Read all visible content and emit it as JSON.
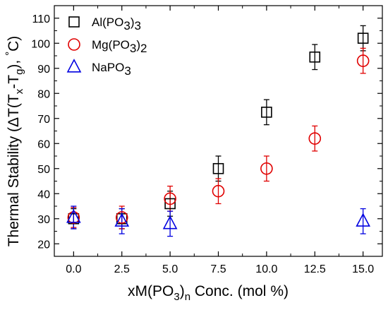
{
  "chart_data": {
    "type": "scatter",
    "title": "",
    "xlabel": "xM(PO3)n Conc. (mol %)",
    "ylabel": "Thermal Stability (ΔT(Tx-Tg), °C)",
    "xlim": [
      -1.0,
      16.0
    ],
    "ylim": [
      15,
      115
    ],
    "x_ticks": [
      0.0,
      2.5,
      5.0,
      7.5,
      10.0,
      12.5,
      15.0
    ],
    "x_tick_labels": [
      "0.0",
      "2.5",
      "5.0",
      "7.5",
      "10.0",
      "12.5",
      "15.0"
    ],
    "y_ticks": [
      20,
      30,
      40,
      50,
      60,
      70,
      80,
      90,
      100,
      110
    ],
    "y_tick_labels": [
      "20",
      "30",
      "40",
      "50",
      "60",
      "70",
      "80",
      "90",
      "100",
      "110"
    ],
    "legend_position": "top-left",
    "grid": false,
    "series": [
      {
        "name": "Al(PO3)3",
        "marker": "square",
        "color": "#000000",
        "x": [
          0.0,
          2.5,
          5.0,
          7.5,
          10.0,
          12.5,
          15.0
        ],
        "y": [
          30,
          30,
          36,
          50,
          72.5,
          94.5,
          102
        ],
        "err": [
          4,
          4,
          5,
          5,
          5,
          5,
          5
        ]
      },
      {
        "name": "Mg(PO3)2",
        "marker": "circle",
        "color": "#e00000",
        "x": [
          0.0,
          2.5,
          5.0,
          7.5,
          10.0,
          12.5,
          15.0
        ],
        "y": [
          30.5,
          30.5,
          38,
          41,
          50,
          62,
          93
        ],
        "err": [
          4,
          4.5,
          5,
          5,
          5,
          5,
          5
        ]
      },
      {
        "name": "NaPO3",
        "marker": "triangle",
        "color": "#0000e0",
        "x": [
          0.0,
          2.5,
          5.0,
          15.0
        ],
        "y": [
          30.5,
          29,
          28,
          29
        ],
        "err": [
          4.5,
          5,
          5,
          5
        ]
      }
    ]
  }
}
